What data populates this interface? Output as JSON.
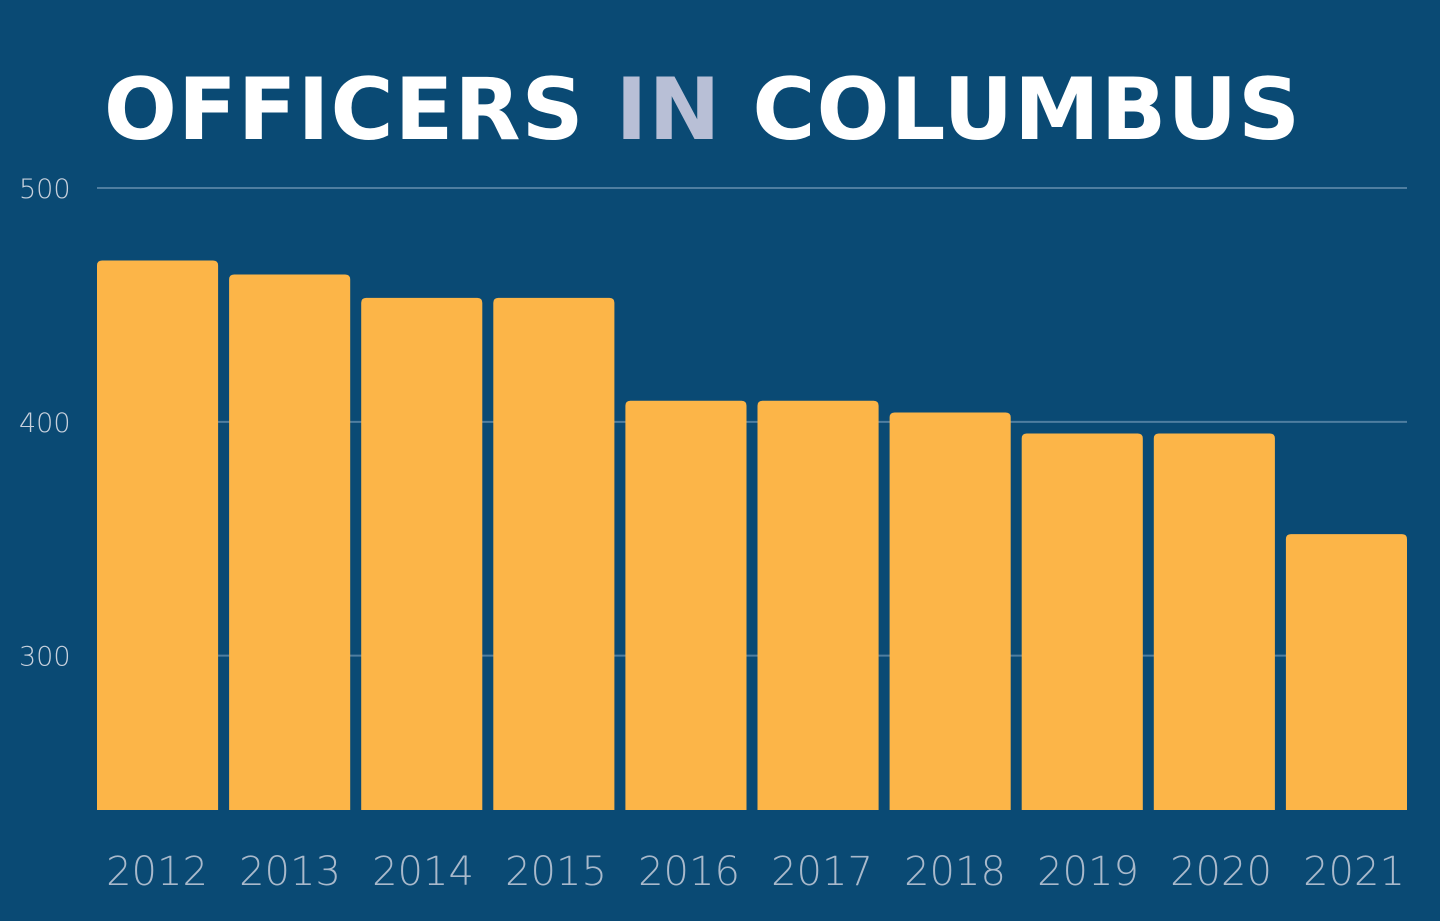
{
  "title": {
    "part1": "OFFICERS ",
    "accent": "IN",
    "part2": " COLUMBUS"
  },
  "colors": {
    "background": "#0a4a74",
    "bar": "#fcb548",
    "title": "#ffffff",
    "title_accent": "#b8bfd6",
    "gridline": "#4f7ea0",
    "tick_label": "#a9b9cb"
  },
  "chart_data": {
    "type": "bar",
    "title": "OFFICERS IN COLUMBUS",
    "xlabel": "",
    "ylabel": "",
    "categories": [
      "2012",
      "2013",
      "2014",
      "2015",
      "2016",
      "2017",
      "2018",
      "2019",
      "2020",
      "2021"
    ],
    "values": [
      469,
      463,
      453,
      453,
      409,
      409,
      404,
      395,
      395,
      352
    ],
    "ylim": [
      234,
      500
    ],
    "yticks": [
      300,
      400,
      500
    ],
    "grid": true,
    "legend": "none"
  }
}
